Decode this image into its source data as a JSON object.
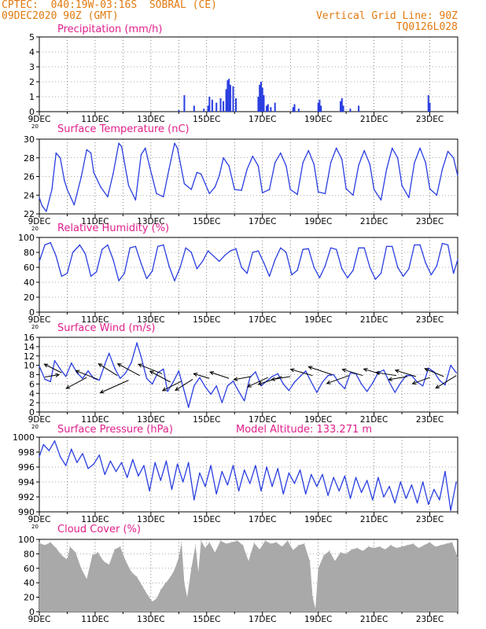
{
  "header": {
    "line1": "CPTEC:  040:19W-03:16S  SOBRAL (CE)",
    "line2": "09DEC2020 90Z (GMT)",
    "right1": "Vertical Grid Line: 90Z",
    "right2": "TQ0126L028"
  },
  "colors": {
    "header_text": "#e07a10",
    "title_text": "#e0208c",
    "series": "#2a3ee0",
    "cloud_fill": "#a9a9a9",
    "frame": "#000000"
  },
  "x_ticks": [
    "9DEC",
    "11DEC",
    "13DEC",
    "15DEC",
    "17DEC",
    "19DEC",
    "21DEC",
    "23DEC"
  ],
  "x_tick_fragment": "20",
  "chart_data": [
    {
      "id": "precip",
      "type": "bar",
      "title": "Precipitation (mm/h)",
      "ylim": [
        0,
        5
      ],
      "yticks": [
        "0",
        "1",
        "2",
        "3",
        "4",
        "5"
      ],
      "x_range_days": [
        9,
        24
      ],
      "x": [
        14.0,
        14.2,
        14.55,
        14.9,
        15.05,
        15.1,
        15.2,
        15.35,
        15.5,
        15.6,
        15.7,
        15.75,
        15.8,
        15.85,
        15.95,
        16.05,
        16.85,
        16.9,
        16.95,
        17.0,
        17.05,
        17.15,
        17.2,
        17.3,
        17.45,
        18.1,
        18.15,
        18.3,
        19.0,
        19.05,
        19.1,
        19.8,
        19.85,
        19.9,
        20.15,
        20.45,
        22.95,
        23.0
      ],
      "values": [
        0.1,
        1.1,
        0.4,
        0.2,
        0.4,
        1.0,
        0.8,
        0.6,
        0.9,
        0.7,
        1.5,
        2.1,
        2.2,
        1.8,
        1.7,
        0.9,
        1.0,
        1.8,
        2.0,
        1.6,
        1.1,
        0.4,
        0.5,
        0.3,
        0.6,
        0.3,
        0.5,
        0.2,
        0.6,
        0.8,
        0.4,
        0.7,
        0.9,
        0.4,
        0.2,
        0.4,
        1.1,
        0.6
      ]
    },
    {
      "id": "temp",
      "type": "line",
      "title": "Surface Temperature (nC)",
      "ylim": [
        21.5,
        30.7
      ],
      "yticks": [
        "22",
        "24",
        "26",
        "28",
        "30"
      ],
      "x_range_days": [
        9,
        24
      ],
      "x": [
        9.0,
        9.1,
        9.25,
        9.45,
        9.6,
        9.75,
        9.9,
        10.0,
        10.25,
        10.5,
        10.7,
        10.85,
        10.95,
        11.2,
        11.45,
        11.65,
        11.85,
        11.95,
        12.2,
        12.45,
        12.65,
        12.8,
        12.95,
        13.2,
        13.45,
        13.65,
        13.85,
        13.95,
        14.2,
        14.45,
        14.65,
        14.8,
        14.95,
        15.1,
        15.3,
        15.45,
        15.6,
        15.8,
        16.0,
        16.25,
        16.45,
        16.65,
        16.85,
        17.0,
        17.25,
        17.45,
        17.65,
        17.85,
        18.0,
        18.25,
        18.45,
        18.65,
        18.85,
        19.0,
        19.25,
        19.45,
        19.65,
        19.85,
        20.0,
        20.25,
        20.45,
        20.65,
        20.85,
        21.0,
        21.25,
        21.45,
        21.65,
        21.85,
        22.0,
        22.25,
        22.45,
        22.65,
        22.85,
        23.0,
        23.25,
        23.45,
        23.65,
        23.85,
        24.0
      ],
      "values": [
        23.5,
        22.5,
        21.8,
        24.5,
        29.0,
        28.4,
        25.6,
        24.5,
        22.6,
        26.0,
        29.4,
        29.0,
        26.6,
        24.8,
        23.6,
        26.5,
        30.2,
        29.8,
        25.0,
        23.2,
        28.8,
        29.6,
        27.4,
        24.0,
        23.6,
        27.0,
        30.2,
        29.6,
        25.2,
        24.5,
        26.6,
        26.4,
        25.2,
        24.0,
        24.8,
        26.2,
        28.4,
        27.4,
        24.5,
        24.4,
        27.0,
        28.6,
        27.4,
        24.1,
        24.5,
        27.8,
        29.0,
        27.4,
        24.5,
        23.9,
        27.8,
        29.3,
        27.6,
        24.2,
        24.0,
        27.8,
        29.6,
        28.2,
        24.6,
        23.8,
        27.5,
        29.3,
        27.6,
        24.5,
        23.2,
        27.0,
        29.6,
        28.4,
        25.0,
        23.5,
        27.8,
        29.6,
        27.8,
        24.6,
        23.8,
        27.0,
        29.2,
        28.4,
        26.2
      ]
    },
    {
      "id": "rh",
      "type": "line",
      "title": "Relative Humidity (%)",
      "ylim": [
        0,
        100
      ],
      "yticks": [
        "0",
        "20",
        "40",
        "60",
        "80",
        "100"
      ],
      "x_range_days": [
        9,
        24
      ],
      "x": [
        9.0,
        9.2,
        9.4,
        9.6,
        9.8,
        10.0,
        10.2,
        10.45,
        10.65,
        10.85,
        11.05,
        11.25,
        11.45,
        11.65,
        11.85,
        12.05,
        12.25,
        12.45,
        12.65,
        12.85,
        13.05,
        13.25,
        13.45,
        13.65,
        13.85,
        14.05,
        14.25,
        14.45,
        14.65,
        14.85,
        15.05,
        15.25,
        15.45,
        15.65,
        15.85,
        16.05,
        16.25,
        16.45,
        16.65,
        16.85,
        17.05,
        17.25,
        17.45,
        17.65,
        17.85,
        18.05,
        18.25,
        18.45,
        18.65,
        18.85,
        19.05,
        19.25,
        19.45,
        19.65,
        19.85,
        20.05,
        20.25,
        20.45,
        20.65,
        20.85,
        21.05,
        21.25,
        21.45,
        21.65,
        21.85,
        22.05,
        22.25,
        22.45,
        22.65,
        22.85,
        23.05,
        23.25,
        23.45,
        23.65,
        23.85,
        24.0
      ],
      "values": [
        68,
        90,
        93,
        75,
        48,
        52,
        80,
        90,
        78,
        48,
        54,
        84,
        90,
        70,
        42,
        52,
        86,
        88,
        65,
        45,
        55,
        88,
        90,
        62,
        42,
        60,
        86,
        80,
        58,
        68,
        82,
        75,
        68,
        76,
        82,
        85,
        60,
        52,
        80,
        82,
        66,
        48,
        70,
        86,
        80,
        50,
        56,
        84,
        85,
        60,
        46,
        62,
        86,
        84,
        58,
        46,
        56,
        86,
        86,
        60,
        44,
        52,
        88,
        88,
        60,
        48,
        58,
        90,
        90,
        66,
        50,
        62,
        92,
        90,
        52,
        70
      ]
    },
    {
      "id": "wind",
      "type": "line",
      "title": "Surface Wind (m/s)",
      "ylim": [
        0,
        16
      ],
      "yticks": [
        "0",
        "2",
        "4",
        "6",
        "8",
        "10",
        "12",
        "14",
        "16"
      ],
      "x_range_days": [
        9,
        24
      ],
      "x": [
        9.0,
        9.2,
        9.4,
        9.55,
        9.75,
        9.95,
        10.15,
        10.35,
        10.55,
        10.75,
        10.95,
        11.15,
        11.35,
        11.5,
        11.7,
        11.9,
        12.1,
        12.3,
        12.5,
        12.65,
        12.85,
        13.05,
        13.25,
        13.45,
        13.6,
        13.8,
        14.0,
        14.2,
        14.35,
        14.55,
        14.75,
        14.95,
        15.15,
        15.35,
        15.55,
        15.75,
        15.95,
        16.15,
        16.35,
        16.55,
        16.75,
        16.95,
        17.15,
        17.35,
        17.55,
        17.75,
        17.95,
        18.15,
        18.35,
        18.55,
        18.75,
        18.95,
        19.15,
        19.35,
        19.55,
        19.75,
        19.95,
        20.15,
        20.35,
        20.55,
        20.75,
        20.95,
        21.15,
        21.35,
        21.55,
        21.75,
        21.95,
        22.15,
        22.35,
        22.55,
        22.75,
        22.95,
        23.15,
        23.35,
        23.55,
        23.75,
        23.95
      ],
      "values": [
        9.8,
        7.0,
        6.5,
        11.0,
        9.2,
        7.6,
        10.5,
        8.4,
        7.2,
        8.8,
        7.2,
        6.8,
        10.2,
        12.6,
        9.4,
        7.2,
        8.4,
        10.6,
        14.8,
        11.8,
        7.2,
        6.0,
        8.4,
        9.2,
        4.4,
        6.4,
        8.8,
        4.4,
        1.0,
        5.6,
        7.4,
        5.4,
        3.8,
        5.6,
        2.0,
        5.6,
        6.6,
        4.4,
        2.4,
        7.4,
        8.6,
        5.6,
        6.6,
        7.6,
        8.2,
        6.0,
        4.6,
        6.4,
        7.6,
        8.8,
        6.4,
        4.2,
        6.4,
        7.8,
        8.0,
        6.2,
        5.0,
        8.4,
        8.2,
        6.0,
        4.4,
        6.2,
        8.4,
        9.0,
        6.4,
        4.2,
        6.2,
        7.8,
        7.8,
        6.4,
        5.6,
        9.4,
        8.6,
        6.8,
        5.8,
        10.0,
        8.4
      ],
      "arrows": [
        {
          "x": 9.2,
          "y": 7.5,
          "dx": 18,
          "dy": -3
        },
        {
          "x": 9.8,
          "y": 8.4,
          "dx": -22,
          "dy": -11
        },
        {
          "x": 10.7,
          "y": 7.4,
          "dx": -26,
          "dy": 14
        },
        {
          "x": 11.1,
          "y": 7.0,
          "dx": -28,
          "dy": -11
        },
        {
          "x": 11.8,
          "y": 7.8,
          "dx": -24,
          "dy": -15
        },
        {
          "x": 12.2,
          "y": 6.8,
          "dx": -36,
          "dy": 16
        },
        {
          "x": 12.6,
          "y": 7.8,
          "dx": -28,
          "dy": -15
        },
        {
          "x": 13.4,
          "y": 8.2,
          "dx": -30,
          "dy": -12
        },
        {
          "x": 13.7,
          "y": 6.4,
          "dx": -26,
          "dy": -14
        },
        {
          "x": 14.1,
          "y": 6.6,
          "dx": -24,
          "dy": 12
        },
        {
          "x": 14.5,
          "y": 7.0,
          "dx": -22,
          "dy": 14
        },
        {
          "x": 15.1,
          "y": 7.2,
          "dx": -20,
          "dy": -6
        },
        {
          "x": 15.8,
          "y": 7.2,
          "dx": -24,
          "dy": -8
        },
        {
          "x": 16.6,
          "y": 7.6,
          "dx": -22,
          "dy": 4
        },
        {
          "x": 17.2,
          "y": 7.4,
          "dx": -26,
          "dy": 12
        },
        {
          "x": 17.7,
          "y": 7.6,
          "dx": -30,
          "dy": 10
        },
        {
          "x": 18.0,
          "y": 7.6,
          "dx": -24,
          "dy": 4
        },
        {
          "x": 18.8,
          "y": 7.8,
          "dx": -28,
          "dy": -8
        },
        {
          "x": 19.5,
          "y": 8.0,
          "dx": -30,
          "dy": -10
        },
        {
          "x": 20.1,
          "y": 7.8,
          "dx": -28,
          "dy": 10
        },
        {
          "x": 20.6,
          "y": 7.8,
          "dx": -26,
          "dy": -8
        },
        {
          "x": 21.2,
          "y": 8.2,
          "dx": -20,
          "dy": -6
        },
        {
          "x": 21.8,
          "y": 7.8,
          "dx": -26,
          "dy": -4
        },
        {
          "x": 22.2,
          "y": 7.6,
          "dx": -24,
          "dy": 4
        },
        {
          "x": 22.5,
          "y": 7.6,
          "dx": -26,
          "dy": -8
        },
        {
          "x": 23.0,
          "y": 7.4,
          "dx": -22,
          "dy": 8
        },
        {
          "x": 23.5,
          "y": 7.6,
          "dx": -24,
          "dy": -10
        },
        {
          "x": 23.95,
          "y": 7.8,
          "dx": -26,
          "dy": 16
        }
      ]
    },
    {
      "id": "pressure",
      "type": "line",
      "title": "Surface Pressure (hPa)",
      "subtitle": "Model Altitude: 133.271  m",
      "ylim": [
        990,
        1000
      ],
      "yticks": [
        "990",
        "992",
        "994",
        "996",
        "998",
        "1000"
      ],
      "x_range_days": [
        9,
        24
      ],
      "x": [
        9.0,
        9.15,
        9.35,
        9.55,
        9.75,
        9.95,
        10.15,
        10.35,
        10.55,
        10.75,
        10.95,
        11.15,
        11.35,
        11.55,
        11.75,
        11.95,
        12.15,
        12.35,
        12.55,
        12.75,
        12.95,
        13.15,
        13.35,
        13.55,
        13.75,
        13.95,
        14.15,
        14.35,
        14.55,
        14.75,
        14.95,
        15.15,
        15.35,
        15.55,
        15.75,
        15.95,
        16.15,
        16.35,
        16.55,
        16.75,
        16.95,
        17.15,
        17.35,
        17.55,
        17.75,
        17.95,
        18.15,
        18.35,
        18.55,
        18.75,
        18.95,
        19.15,
        19.35,
        19.55,
        19.75,
        19.95,
        20.15,
        20.35,
        20.55,
        20.75,
        20.95,
        21.15,
        21.35,
        21.55,
        21.75,
        21.95,
        22.15,
        22.35,
        22.55,
        22.75,
        22.95,
        23.15,
        23.35,
        23.55,
        23.75,
        23.95
      ],
      "values": [
        997.4,
        999.0,
        998.2,
        999.5,
        997.4,
        996.2,
        998.4,
        996.6,
        997.8,
        995.8,
        996.4,
        997.6,
        995.0,
        996.8,
        995.4,
        996.6,
        994.6,
        997.0,
        994.8,
        996.2,
        992.8,
        996.6,
        994.2,
        996.8,
        993.0,
        996.4,
        994.0,
        996.6,
        991.6,
        995.2,
        993.4,
        996.2,
        992.4,
        995.4,
        993.6,
        996.2,
        992.8,
        995.6,
        993.8,
        996.2,
        992.8,
        996.0,
        993.4,
        995.8,
        992.4,
        995.2,
        993.8,
        995.6,
        992.4,
        995.0,
        993.4,
        995.0,
        992.2,
        994.6,
        992.8,
        994.8,
        991.8,
        994.6,
        992.6,
        994.2,
        991.6,
        994.6,
        992.0,
        993.4,
        991.2,
        994.0,
        991.8,
        993.6,
        991.2,
        994.0,
        991.0,
        993.0,
        991.6,
        995.4,
        990.2,
        994.0
      ]
    },
    {
      "id": "cloud",
      "type": "area",
      "title": "Cloud Cover (%)",
      "ylim": [
        0,
        100
      ],
      "yticks": [
        "0",
        "20",
        "40",
        "60",
        "80",
        "100"
      ],
      "x_range_days": [
        9,
        24
      ],
      "x": [
        9.0,
        9.2,
        9.4,
        9.6,
        9.8,
        10.0,
        10.1,
        10.3,
        10.5,
        10.7,
        10.9,
        11.1,
        11.3,
        11.5,
        11.7,
        11.9,
        12.1,
        12.3,
        12.5,
        12.7,
        12.9,
        13.05,
        13.2,
        13.35,
        13.5,
        13.7,
        13.85,
        14.0,
        14.1,
        14.2,
        14.3,
        14.45,
        14.6,
        14.7,
        14.8,
        14.95,
        15.1,
        15.3,
        15.5,
        15.7,
        15.9,
        16.1,
        16.3,
        16.5,
        16.7,
        16.9,
        17.1,
        17.3,
        17.5,
        17.7,
        17.9,
        18.1,
        18.3,
        18.5,
        18.7,
        18.8,
        18.9,
        19.0,
        19.2,
        19.4,
        19.6,
        19.8,
        20.0,
        20.2,
        20.4,
        20.6,
        20.8,
        21.0,
        21.2,
        21.4,
        21.6,
        21.8,
        22.0,
        22.2,
        22.4,
        22.6,
        22.8,
        23.0,
        23.2,
        23.4,
        23.6,
        23.8,
        24.0
      ],
      "values": [
        95,
        92,
        96,
        88,
        78,
        72,
        90,
        82,
        60,
        45,
        78,
        82,
        70,
        65,
        86,
        90,
        70,
        55,
        48,
        35,
        22,
        14,
        18,
        30,
        38,
        48,
        58,
        75,
        96,
        40,
        20,
        60,
        92,
        55,
        98,
        88,
        96,
        82,
        98,
        94,
        96,
        98,
        92,
        70,
        95,
        86,
        98,
        94,
        96,
        90,
        98,
        85,
        92,
        94,
        70,
        20,
        4,
        60,
        78,
        84,
        70,
        82,
        80,
        86,
        88,
        84,
        90,
        88,
        90,
        86,
        92,
        88,
        90,
        92,
        94,
        88,
        92,
        96,
        90,
        92,
        94,
        96,
        75
      ]
    }
  ]
}
